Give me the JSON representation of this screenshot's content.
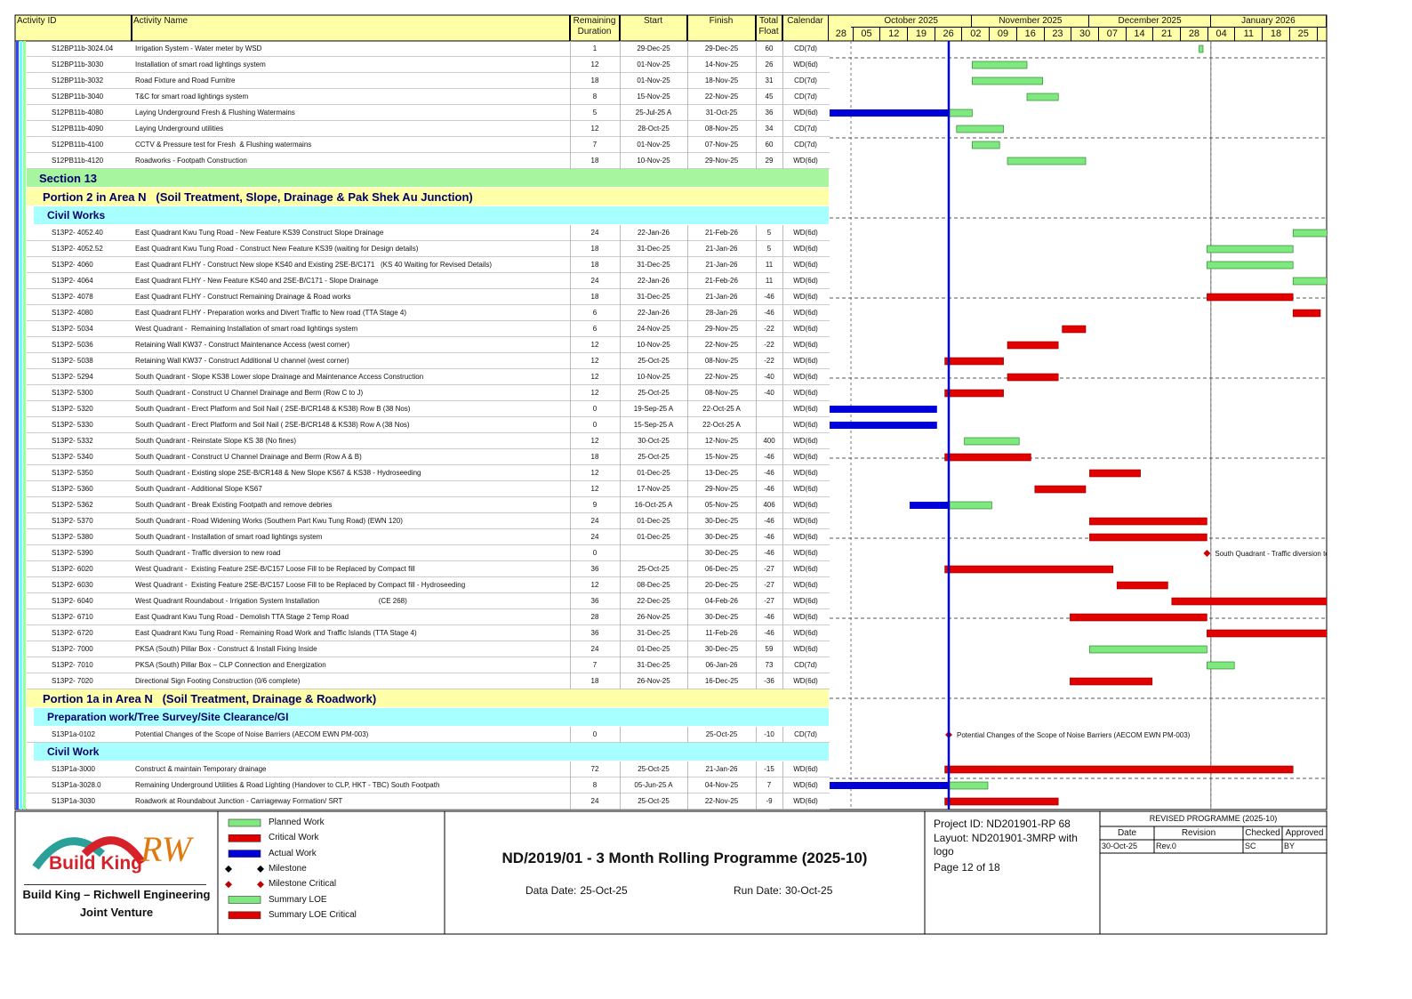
{
  "header": {
    "columns": [
      "Activity ID",
      "Activity Name",
      "Remaining Duration",
      "Start",
      "Finish",
      "Total Float",
      "Calendar"
    ],
    "months": [
      "October 2025",
      "November 2025",
      "December 2025",
      "January 2026"
    ],
    "weeks": [
      "28",
      "05",
      "12",
      "19",
      "26",
      "02",
      "09",
      "16",
      "23",
      "30",
      "07",
      "14",
      "21",
      "28",
      "04",
      "11",
      "18",
      "25"
    ]
  },
  "rows": [
    {
      "id": "S12BP11b-3024.04",
      "name": "Irrigation System - Water meter by WSD",
      "remaining": 1,
      "start": "29-Dec-25",
      "finish": "29-Dec-25",
      "float": 60,
      "calendar": "CD(7d)"
    },
    {
      "id": "S12BP11b-3030",
      "name": "Installation of smart road lightings system",
      "remaining": 12,
      "start": "01-Nov-25",
      "finish": "14-Nov-25",
      "float": 26,
      "calendar": "WD(6d)"
    },
    {
      "id": "S12BP11b-3032",
      "name": "Road Fixture and Road Furnitre",
      "remaining": 18,
      "start": "01-Nov-25",
      "finish": "18-Nov-25",
      "float": 31,
      "calendar": "CD(7d)"
    },
    {
      "id": "S12BP11b-3040",
      "name": "T&C for smart road lightings system",
      "remaining": 8,
      "start": "15-Nov-25",
      "finish": "22-Nov-25",
      "float": 45,
      "calendar": "CD(7d)"
    },
    {
      "id": "S12PB11b-4080",
      "name": "Laying Underground Fresh & Flushing Watermains",
      "remaining": 5,
      "start": "25-Jul-25 A",
      "finish": "31-Oct-25",
      "float": 36,
      "calendar": "WD(6d)"
    },
    {
      "id": "S12PB11b-4090",
      "name": "Laying Underground utilities",
      "remaining": 12,
      "start": "28-Oct-25",
      "finish": "08-Nov-25",
      "float": 34,
      "calendar": "CD(7d)"
    },
    {
      "id": "S12PB11b-4100",
      "name": "CCTV & Pressure test for Fresh  & Flushing watermains",
      "remaining": 7,
      "start": "01-Nov-25",
      "finish": "07-Nov-25",
      "float": 60,
      "calendar": "CD(7d)"
    },
    {
      "id": "S12PB11b-4120",
      "name": "Roadworks - Footpath Construction",
      "remaining": 18,
      "start": "10-Nov-25",
      "finish": "29-Nov-25",
      "float": 29,
      "calendar": "WD(6d)"
    },
    {
      "band": "Section 13",
      "level": "section"
    },
    {
      "band": "Portion 2 in Area N   (Soil Treatment, Slope, Drainage & Pak Shek Au Junction)",
      "level": "portion"
    },
    {
      "band": "Civil Works",
      "level": "group"
    },
    {
      "id": "S13P2- 4052.40",
      "name": "East Quadrant Kwu Tung Road - New Feature KS39 Construct Slope Drainage",
      "remaining": 24,
      "start": "22-Jan-26",
      "finish": "21-Feb-26",
      "float": 5,
      "calendar": "WD(6d)"
    },
    {
      "id": "S13P2- 4052.52",
      "name": "East Quadrant Kwu Tung Road - Construct New Feature KS39 (waiting for Design details)",
      "remaining": 18,
      "start": "31-Dec-25",
      "finish": "21-Jan-26",
      "float": 5,
      "calendar": "WD(6d)"
    },
    {
      "id": "S13P2- 4060",
      "name": "East Quadrant FLHY - Construct New slope KS40 and Existing 2SE-B/C171   (KS 40 Waiting for Revised Details)",
      "remaining": 18,
      "start": "31-Dec-25",
      "finish": "21-Jan-26",
      "float": 11,
      "calendar": "WD(6d)"
    },
    {
      "id": "S13P2- 4064",
      "name": "East Quadrant FLHY - New Feature KS40 and 2SE-B/C171 - Slope Drainage",
      "remaining": 24,
      "start": "22-Jan-26",
      "finish": "21-Feb-26",
      "float": 11,
      "calendar": "WD(6d)"
    },
    {
      "id": "S13P2- 4078",
      "name": "East Quadrant FLHY - Construct Remaining Drainage & Road works",
      "remaining": 18,
      "start": "31-Dec-25",
      "finish": "21-Jan-26",
      "float": -46,
      "calendar": "WD(6d)"
    },
    {
      "id": "S13P2- 4080",
      "name": "East Quadrant FLHY - Preparation works and Divert Traffic to New road (TTA Stage 4)",
      "remaining": 6,
      "start": "22-Jan-26",
      "finish": "28-Jan-26",
      "float": -46,
      "calendar": "WD(6d)"
    },
    {
      "id": "S13P2- 5034",
      "name": "West Quadrant -  Remaining Installation of smart road lightings system",
      "remaining": 6,
      "start": "24-Nov-25",
      "finish": "29-Nov-25",
      "float": -22,
      "calendar": "WD(6d)"
    },
    {
      "id": "S13P2- 5036",
      "name": "Retaining Wall KW37 - Construct Maintenance Access (west corner)",
      "remaining": 12,
      "start": "10-Nov-25",
      "finish": "22-Nov-25",
      "float": -22,
      "calendar": "WD(6d)"
    },
    {
      "id": "S13P2- 5038",
      "name": "Retaining Wall KW37 - Construct Additional U channel (west corner)",
      "remaining": 12,
      "start": "25-Oct-25",
      "finish": "08-Nov-25",
      "float": -22,
      "calendar": "WD(6d)"
    },
    {
      "id": "S13P2- 5294",
      "name": "South Quadrant - Slope KS38 Lower slope Drainage and Maintenance Access Construction",
      "remaining": 12,
      "start": "10-Nov-25",
      "finish": "22-Nov-25",
      "float": -40,
      "calendar": "WD(6d)"
    },
    {
      "id": "S13P2- 5300",
      "name": "South Quadrant - Construct U Channel Drainage and Berm (Row C to J)",
      "remaining": 12,
      "start": "25-Oct-25",
      "finish": "08-Nov-25",
      "float": -40,
      "calendar": "WD(6d)"
    },
    {
      "id": "S13P2- 5320",
      "name": "South Quadrant - Erect Platform and Soil Nail ( 2SE-B/CR148 & KS38) Row B (38 Nos)",
      "remaining": 0,
      "start": "19-Sep-25 A",
      "finish": "22-Oct-25 A",
      "float": null,
      "calendar": "WD(6d)"
    },
    {
      "id": "S13P2- 5330",
      "name": "South Quadrant - Erect Platform and Soil Nail ( 2SE-B/CR148 & KS38) Row A (38 Nos)",
      "remaining": 0,
      "start": "15-Sep-25 A",
      "finish": "22-Oct-25 A",
      "float": null,
      "calendar": "WD(6d)"
    },
    {
      "id": "S13P2- 5332",
      "name": "South Quadrant - Reinstate Slope KS 38 (No fines)",
      "remaining": 12,
      "start": "30-Oct-25",
      "finish": "12-Nov-25",
      "float": 400,
      "calendar": "WD(6d)"
    },
    {
      "id": "S13P2- 5340",
      "name": "South Quadrant - Construct U Channel Drainage and Berm (Row A & B)",
      "remaining": 18,
      "start": "25-Oct-25",
      "finish": "15-Nov-25",
      "float": -46,
      "calendar": "WD(6d)"
    },
    {
      "id": "S13P2- 5350",
      "name": "South Quadrant - Existing slope 2SE-B/CR148 & New Slope KS67 & KS38 - Hydroseeding",
      "remaining": 12,
      "start": "01-Dec-25",
      "finish": "13-Dec-25",
      "float": -46,
      "calendar": "WD(6d)"
    },
    {
      "id": "S13P2- 5360",
      "name": "South Quadrant - Additional Slope KS67",
      "remaining": 12,
      "start": "17-Nov-25",
      "finish": "29-Nov-25",
      "float": -46,
      "calendar": "WD(6d)"
    },
    {
      "id": "S13P2- 5362",
      "name": "South Quadrant - Break Existing Footpath and remove debries",
      "remaining": 9,
      "start": "16-Oct-25 A",
      "finish": "05-Nov-25",
      "float": 406,
      "calendar": "WD(6d)"
    },
    {
      "id": "S13P2- 5370",
      "name": "South Quadrant - Road Widening Works (Southern Part Kwu Tung Road) (EWN 120)",
      "remaining": 24,
      "start": "01-Dec-25",
      "finish": "30-Dec-25",
      "float": -46,
      "calendar": "WD(6d)"
    },
    {
      "id": "S13P2- 5380",
      "name": "South Quadrant - Installation of smart road lightings system",
      "remaining": 24,
      "start": "01-Dec-25",
      "finish": "30-Dec-25",
      "float": -46,
      "calendar": "WD(6d)"
    },
    {
      "id": "S13P2- 5390",
      "name": "South Quadrant - Traffic diversion to new road",
      "remaining": 0,
      "start": null,
      "finish": "30-Dec-25",
      "float": -46,
      "calendar": "WD(6d)"
    },
    {
      "id": "S13P2- 6020",
      "name": "West Quadrant -  Existing Feature 2SE-B/C157 Loose Fill to be Replaced by Compact fill",
      "remaining": 36,
      "start": "25-Oct-25",
      "finish": "06-Dec-25",
      "float": -27,
      "calendar": "WD(6d)"
    },
    {
      "id": "S13P2- 6030",
      "name": "West Quadrant -  Existing Feature 2SE-B/C157 Loose Fill to be Replaced by Compact fill - Hydroseeding",
      "remaining": 12,
      "start": "08-Dec-25",
      "finish": "20-Dec-25",
      "float": -27,
      "calendar": "WD(6d)"
    },
    {
      "id": "S13P2- 6040",
      "name": "West Quadrant Roundabout - Irrigation System Installation                              (CE 268)",
      "remaining": 36,
      "start": "22-Dec-25",
      "finish": "04-Feb-26",
      "float": -27,
      "calendar": "WD(6d)"
    },
    {
      "id": "S13P2- 6710",
      "name": "East Quadrant Kwu Tung Road - Demolish TTA Stage 2 Temp Road",
      "remaining": 28,
      "start": "26-Nov-25",
      "finish": "30-Dec-25",
      "float": -46,
      "calendar": "WD(6d)"
    },
    {
      "id": "S13P2- 6720",
      "name": "East Quadrant Kwu Tung Road - Remaining Road Work and Traffic Islands (TTA Stage 4)",
      "remaining": 36,
      "start": "31-Dec-25",
      "finish": "11-Feb-26",
      "float": -46,
      "calendar": "WD(6d)"
    },
    {
      "id": "S13P2- 7000",
      "name": "PKSA (South) Pillar Box - Construct & Install Fixing Inside",
      "remaining": 24,
      "start": "01-Dec-25",
      "finish": "30-Dec-25",
      "float": 59,
      "calendar": "WD(6d)"
    },
    {
      "id": "S13P2- 7010",
      "name": "PKSA (South) Pillar Box – CLP Connection and Energization",
      "remaining": 7,
      "start": "31-Dec-25",
      "finish": "06-Jan-26",
      "float": 73,
      "calendar": "CD(7d)"
    },
    {
      "id": "S13P2- 7020",
      "name": "Directional Sign Footing Construction (0/6 complete)",
      "remaining": 18,
      "start": "26-Nov-25",
      "finish": "16-Dec-25",
      "float": -36,
      "calendar": "WD(6d)"
    },
    {
      "band": "Portion 1a in Area N   (Soil Treatment, Drainage & Roadwork)",
      "level": "portion"
    },
    {
      "band": "Preparation work/Tree Survey/Site Clearance/GI",
      "level": "group"
    },
    {
      "id": "S13P1a-0102",
      "name": "Potential Changes of the Scope of Noise Barriers (AECOM EWN PM-003)",
      "remaining": 0,
      "start": null,
      "finish": "25-Oct-25",
      "float": -10,
      "calendar": "CD(7d)"
    },
    {
      "band": "Civil Work",
      "level": "group"
    },
    {
      "id": "S13P1a-3000",
      "name": "Construct & maintain Temporary drainage",
      "remaining": 72,
      "start": "25-Oct-25",
      "finish": "21-Jan-26",
      "float": -15,
      "calendar": "WD(6d)"
    },
    {
      "id": "S13P1a-3028.0",
      "name": "Remaining Underground Utilities & Road Lighting (Handover to CLP, HKT - TBC) South Footpath",
      "remaining": 8,
      "start": "05-Jun-25 A",
      "finish": "04-Nov-25",
      "float": 7,
      "calendar": "WD(6d)"
    },
    {
      "id": "S13P1a-3030",
      "name": "Roadwork at Roundabout Junction - Carriageway Formation/ SRT",
      "remaining": 24,
      "start": "25-Oct-25",
      "finish": "22-Nov-25",
      "float": -9,
      "calendar": "WD(6d)"
    }
  ],
  "legend": [
    {
      "label": "Planned Work",
      "symbol": "bar",
      "color": "#7fe87f"
    },
    {
      "label": "Critical Work",
      "symbol": "bar",
      "color": "#e00000"
    },
    {
      "label": "Actual Work",
      "symbol": "bar",
      "color": "#0000d8"
    },
    {
      "label": "Milestone",
      "symbol": "diamond",
      "color": "#000000"
    },
    {
      "label": "Milestone Critical",
      "symbol": "diamond",
      "color": "#c00000"
    },
    {
      "label": "Summary LOE",
      "symbol": "bar",
      "color": "#7fe87f"
    },
    {
      "label": "Summary LOE Critical",
      "symbol": "bar",
      "color": "#e00000"
    }
  ],
  "logo": {
    "brand": "Build King",
    "mark": "RW",
    "company": "Build King – Richwell Engineering",
    "venture": "Joint Venture"
  },
  "title": "ND/2019/01 - 3 Month Rolling Programme (2025-10)",
  "data_date": {
    "label": "Data Date:",
    "value": "25-Oct-25"
  },
  "run_date": {
    "label": "Run Date:",
    "value": "30-Oct-25"
  },
  "project": {
    "id": "Project ID: ND201901-RP 68",
    "layout": "Layuot: ND201901-3MRP with logo",
    "page": "Page 12 of 18"
  },
  "revision": {
    "title": "REVISED PROGRAMME (2025-10)",
    "columns": [
      "Date",
      "Revision",
      "Checked",
      "Approved"
    ],
    "row": [
      "30-Oct-25",
      "Rev.0",
      "SC",
      "BY"
    ]
  }
}
